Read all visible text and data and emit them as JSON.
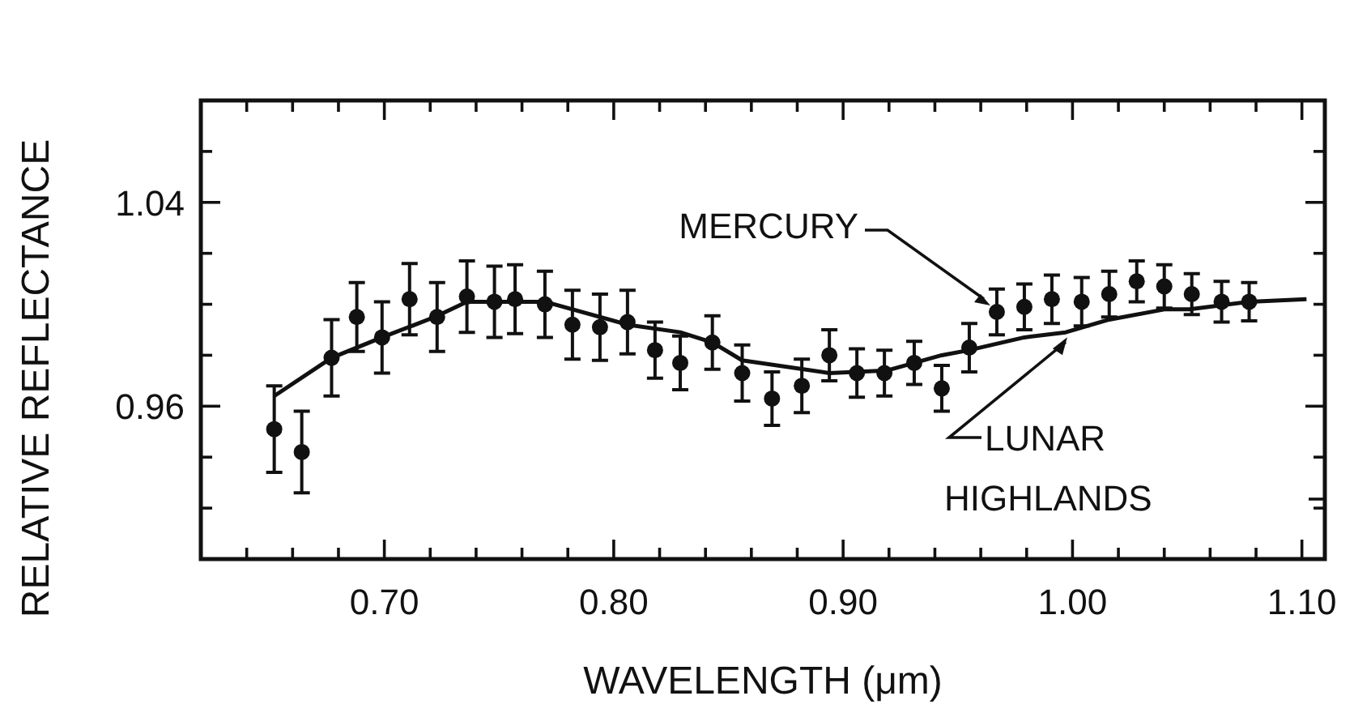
{
  "chart_data": {
    "type": "scatter",
    "xlabel": "WAVELENGTH (μm)",
    "ylabel": "RELATIVE REFLECTANCE",
    "xlim": [
      0.62,
      1.11
    ],
    "ylim": [
      0.9,
      1.08
    ],
    "xticks": [
      {
        "value": 0.64,
        "label": null
      },
      {
        "value": 0.66,
        "label": null
      },
      {
        "value": 0.68,
        "label": null
      },
      {
        "value": 0.7,
        "label": "0.70"
      },
      {
        "value": 0.72,
        "label": null
      },
      {
        "value": 0.74,
        "label": null
      },
      {
        "value": 0.76,
        "label": null
      },
      {
        "value": 0.78,
        "label": null
      },
      {
        "value": 0.8,
        "label": "0.80"
      },
      {
        "value": 0.82,
        "label": null
      },
      {
        "value": 0.84,
        "label": null
      },
      {
        "value": 0.86,
        "label": null
      },
      {
        "value": 0.88,
        "label": null
      },
      {
        "value": 0.9,
        "label": "0.90"
      },
      {
        "value": 0.92,
        "label": null
      },
      {
        "value": 0.94,
        "label": null
      },
      {
        "value": 0.96,
        "label": null
      },
      {
        "value": 0.98,
        "label": null
      },
      {
        "value": 1.0,
        "label": "1.00"
      },
      {
        "value": 1.02,
        "label": null
      },
      {
        "value": 1.04,
        "label": null
      },
      {
        "value": 1.06,
        "label": null
      },
      {
        "value": 1.08,
        "label": null
      },
      {
        "value": 1.1,
        "label": "1.10"
      }
    ],
    "yticks": [
      {
        "value": 0.92,
        "label": null
      },
      {
        "value": 0.94,
        "label": null
      },
      0.96,
      {
        "value": 0.98,
        "label": null
      },
      {
        "value": 1.0,
        "label": null
      },
      {
        "value": 1.02,
        "label": null
      },
      1.04,
      {
        "value": 1.06,
        "label": null
      }
    ],
    "grid": false,
    "series": [
      {
        "name": "MERCURY",
        "type": "scatter",
        "marker": "circle",
        "color": "#111111",
        "x": [
          0.652,
          0.664,
          0.677,
          0.688,
          0.699,
          0.711,
          0.723,
          0.736,
          0.748,
          0.757,
          0.77,
          0.782,
          0.794,
          0.806,
          0.818,
          0.829,
          0.843,
          0.856,
          0.869,
          0.882,
          0.894,
          0.906,
          0.918,
          0.931,
          0.943,
          0.955,
          0.967,
          0.979,
          0.991,
          1.004,
          1.016,
          1.028,
          1.04,
          1.052,
          1.065,
          1.077
        ],
        "values": [
          0.951,
          0.942,
          0.979,
          0.995,
          0.987,
          1.002,
          0.995,
          1.003,
          1.001,
          1.002,
          1.0,
          0.992,
          0.991,
          0.993,
          0.982,
          0.977,
          0.985,
          0.973,
          0.963,
          0.968,
          0.98,
          0.973,
          0.973,
          0.977,
          0.967,
          0.983,
          0.997,
          0.999,
          1.002,
          1.001,
          1.004,
          1.009,
          1.007,
          1.004,
          1.001,
          1.001
        ],
        "errors": [
          0.017,
          0.016,
          0.015,
          0.0135,
          0.014,
          0.014,
          0.0135,
          0.014,
          0.014,
          0.0135,
          0.013,
          0.0135,
          0.013,
          0.0125,
          0.011,
          0.0105,
          0.0105,
          0.011,
          0.0105,
          0.0105,
          0.01,
          0.0095,
          0.009,
          0.0085,
          0.009,
          0.0095,
          0.009,
          0.009,
          0.0095,
          0.0095,
          0.009,
          0.008,
          0.0085,
          0.008,
          0.008,
          0.0075
        ]
      },
      {
        "name": "LUNAR HIGHLANDS",
        "type": "line",
        "marker": "none",
        "line_style": "solid",
        "color": "#111111",
        "x": [
          0.652,
          0.677,
          0.699,
          0.722,
          0.736,
          0.77,
          0.806,
          0.829,
          0.843,
          0.856,
          0.894,
          0.919,
          0.943,
          0.955,
          0.979,
          0.997,
          1.016,
          1.04,
          1.051,
          1.077,
          1.102
        ],
        "values": [
          0.964,
          0.979,
          0.987,
          0.995,
          1.001,
          1.001,
          0.992,
          0.989,
          0.985,
          0.978,
          0.973,
          0.974,
          0.98,
          0.982,
          0.987,
          0.989,
          0.994,
          0.998,
          0.998,
          1.001,
          1.002
        ]
      }
    ]
  }
}
